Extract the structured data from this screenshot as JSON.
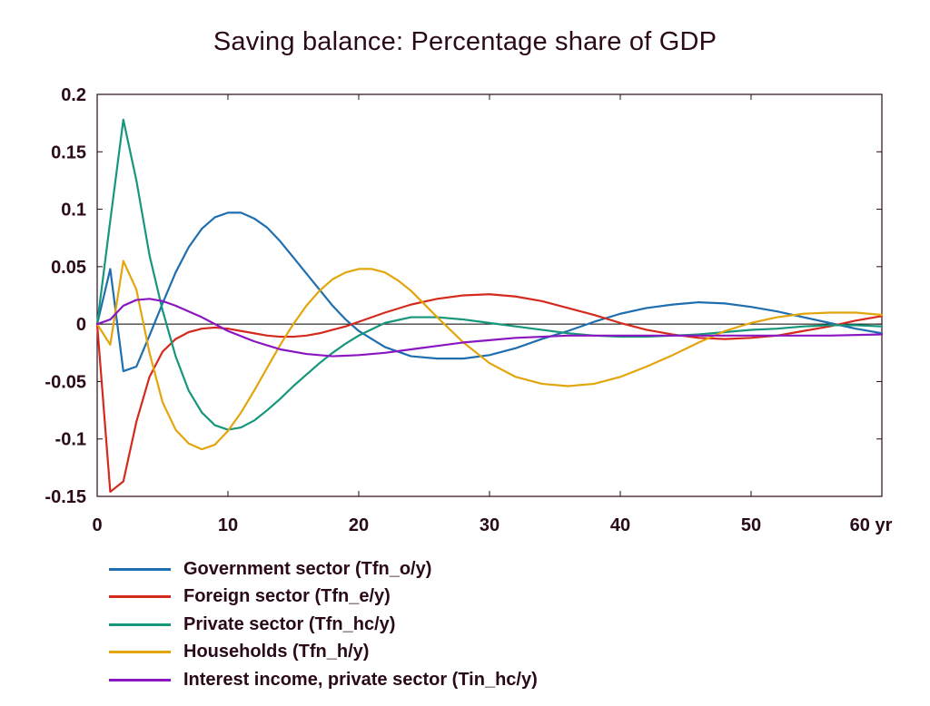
{
  "chart_data": {
    "type": "line",
    "title": "Saving balance: Percentage share of GDP",
    "xlabel": "",
    "ylabel": "",
    "x_unit": "yr",
    "xlim": [
      0,
      60
    ],
    "ylim": [
      -0.15,
      0.2
    ],
    "x_ticks": [
      "0",
      "10",
      "20",
      "30",
      "40",
      "50",
      "60 yr"
    ],
    "y_ticks": [
      "0.2",
      "0.15",
      "0.1",
      "0.05",
      "0",
      "-0.05",
      "-0.1",
      "-0.15"
    ],
    "grid": false,
    "zero_line": true,
    "legend_position": "bottom-left",
    "series": [
      {
        "name": "Government sector (Tfn_o/y)",
        "color": "#1f6fb0",
        "x": [
          0,
          1,
          2,
          3,
          4,
          5,
          6,
          7,
          8,
          9,
          10,
          11,
          12,
          13,
          14,
          15,
          16,
          17,
          18,
          19,
          20,
          22,
          24,
          26,
          28,
          30,
          32,
          34,
          36,
          38,
          40,
          42,
          44,
          46,
          48,
          50,
          52,
          54,
          56,
          58,
          60
        ],
        "y": [
          0,
          0.048,
          -0.041,
          -0.037,
          -0.01,
          0.018,
          0.045,
          0.067,
          0.083,
          0.093,
          0.097,
          0.097,
          0.092,
          0.084,
          0.072,
          0.058,
          0.044,
          0.03,
          0.016,
          0.004,
          -0.006,
          -0.02,
          -0.028,
          -0.03,
          -0.03,
          -0.027,
          -0.021,
          -0.013,
          -0.006,
          0.002,
          0.009,
          0.014,
          0.017,
          0.019,
          0.018,
          0.015,
          0.011,
          0.006,
          0.001,
          -0.004,
          -0.008
        ]
      },
      {
        "name": "Foreign sector (Tfn_e/y)",
        "color": "#d42a1e",
        "x": [
          0,
          1,
          2,
          3,
          4,
          5,
          6,
          7,
          8,
          9,
          10,
          11,
          12,
          13,
          14,
          15,
          16,
          17,
          18,
          19,
          20,
          22,
          24,
          26,
          28,
          30,
          32,
          34,
          36,
          38,
          40,
          42,
          44,
          46,
          48,
          50,
          52,
          54,
          56,
          58,
          60
        ],
        "y": [
          0,
          -0.146,
          -0.137,
          -0.085,
          -0.046,
          -0.024,
          -0.013,
          -0.007,
          -0.004,
          -0.003,
          -0.004,
          -0.006,
          -0.008,
          -0.01,
          -0.011,
          -0.011,
          -0.01,
          -0.008,
          -0.005,
          -0.002,
          0.002,
          0.01,
          0.017,
          0.022,
          0.025,
          0.026,
          0.024,
          0.02,
          0.014,
          0.008,
          0.001,
          -0.005,
          -0.009,
          -0.012,
          -0.013,
          -0.012,
          -0.01,
          -0.006,
          -0.002,
          0.003,
          0.007
        ]
      },
      {
        "name": "Private sector (Tfn_hc/y)",
        "color": "#16967a",
        "x": [
          0,
          1,
          2,
          3,
          4,
          5,
          6,
          7,
          8,
          9,
          10,
          11,
          12,
          13,
          14,
          15,
          16,
          17,
          18,
          19,
          20,
          22,
          24,
          26,
          28,
          30,
          32,
          34,
          36,
          38,
          40,
          42,
          44,
          46,
          48,
          50,
          52,
          54,
          56,
          58,
          60
        ],
        "y": [
          0,
          0.09,
          0.178,
          0.125,
          0.06,
          0.012,
          -0.028,
          -0.058,
          -0.077,
          -0.088,
          -0.092,
          -0.09,
          -0.084,
          -0.075,
          -0.065,
          -0.054,
          -0.044,
          -0.034,
          -0.025,
          -0.017,
          -0.01,
          0.001,
          0.006,
          0.006,
          0.004,
          0.001,
          -0.002,
          -0.005,
          -0.008,
          -0.01,
          -0.011,
          -0.011,
          -0.01,
          -0.009,
          -0.007,
          -0.005,
          -0.004,
          -0.002,
          -0.001,
          -0.001,
          -0.002
        ]
      },
      {
        "name": "Households (Tfn_h/y)",
        "color": "#e3a50c",
        "x": [
          0,
          1,
          2,
          3,
          4,
          5,
          6,
          7,
          8,
          9,
          10,
          11,
          12,
          13,
          14,
          15,
          16,
          17,
          18,
          19,
          20,
          21,
          22,
          23,
          24,
          26,
          28,
          30,
          32,
          34,
          36,
          38,
          40,
          42,
          44,
          46,
          48,
          50,
          52,
          54,
          56,
          58,
          60
        ],
        "y": [
          0,
          -0.018,
          0.055,
          0.03,
          -0.025,
          -0.068,
          -0.092,
          -0.104,
          -0.109,
          -0.105,
          -0.093,
          -0.077,
          -0.058,
          -0.038,
          -0.018,
          0.0,
          0.016,
          0.029,
          0.039,
          0.045,
          0.048,
          0.048,
          0.045,
          0.038,
          0.029,
          0.006,
          -0.016,
          -0.034,
          -0.046,
          -0.052,
          -0.054,
          -0.052,
          -0.046,
          -0.037,
          -0.027,
          -0.016,
          -0.006,
          0.001,
          0.006,
          0.009,
          0.01,
          0.01,
          0.008
        ]
      },
      {
        "name": "Interest income, private sector (Tin_hc/y)",
        "color": "#8a16c2",
        "x": [
          0,
          1,
          2,
          3,
          4,
          5,
          6,
          7,
          8,
          9,
          10,
          12,
          14,
          16,
          18,
          20,
          22,
          24,
          26,
          28,
          30,
          32,
          34,
          36,
          38,
          40,
          44,
          48,
          52,
          56,
          60
        ],
        "y": [
          0,
          0.004,
          0.016,
          0.021,
          0.022,
          0.02,
          0.016,
          0.011,
          0.006,
          0.0,
          -0.006,
          -0.015,
          -0.022,
          -0.026,
          -0.028,
          -0.027,
          -0.025,
          -0.022,
          -0.019,
          -0.016,
          -0.014,
          -0.012,
          -0.011,
          -0.01,
          -0.01,
          -0.01,
          -0.01,
          -0.01,
          -0.01,
          -0.01,
          -0.009
        ]
      }
    ]
  }
}
